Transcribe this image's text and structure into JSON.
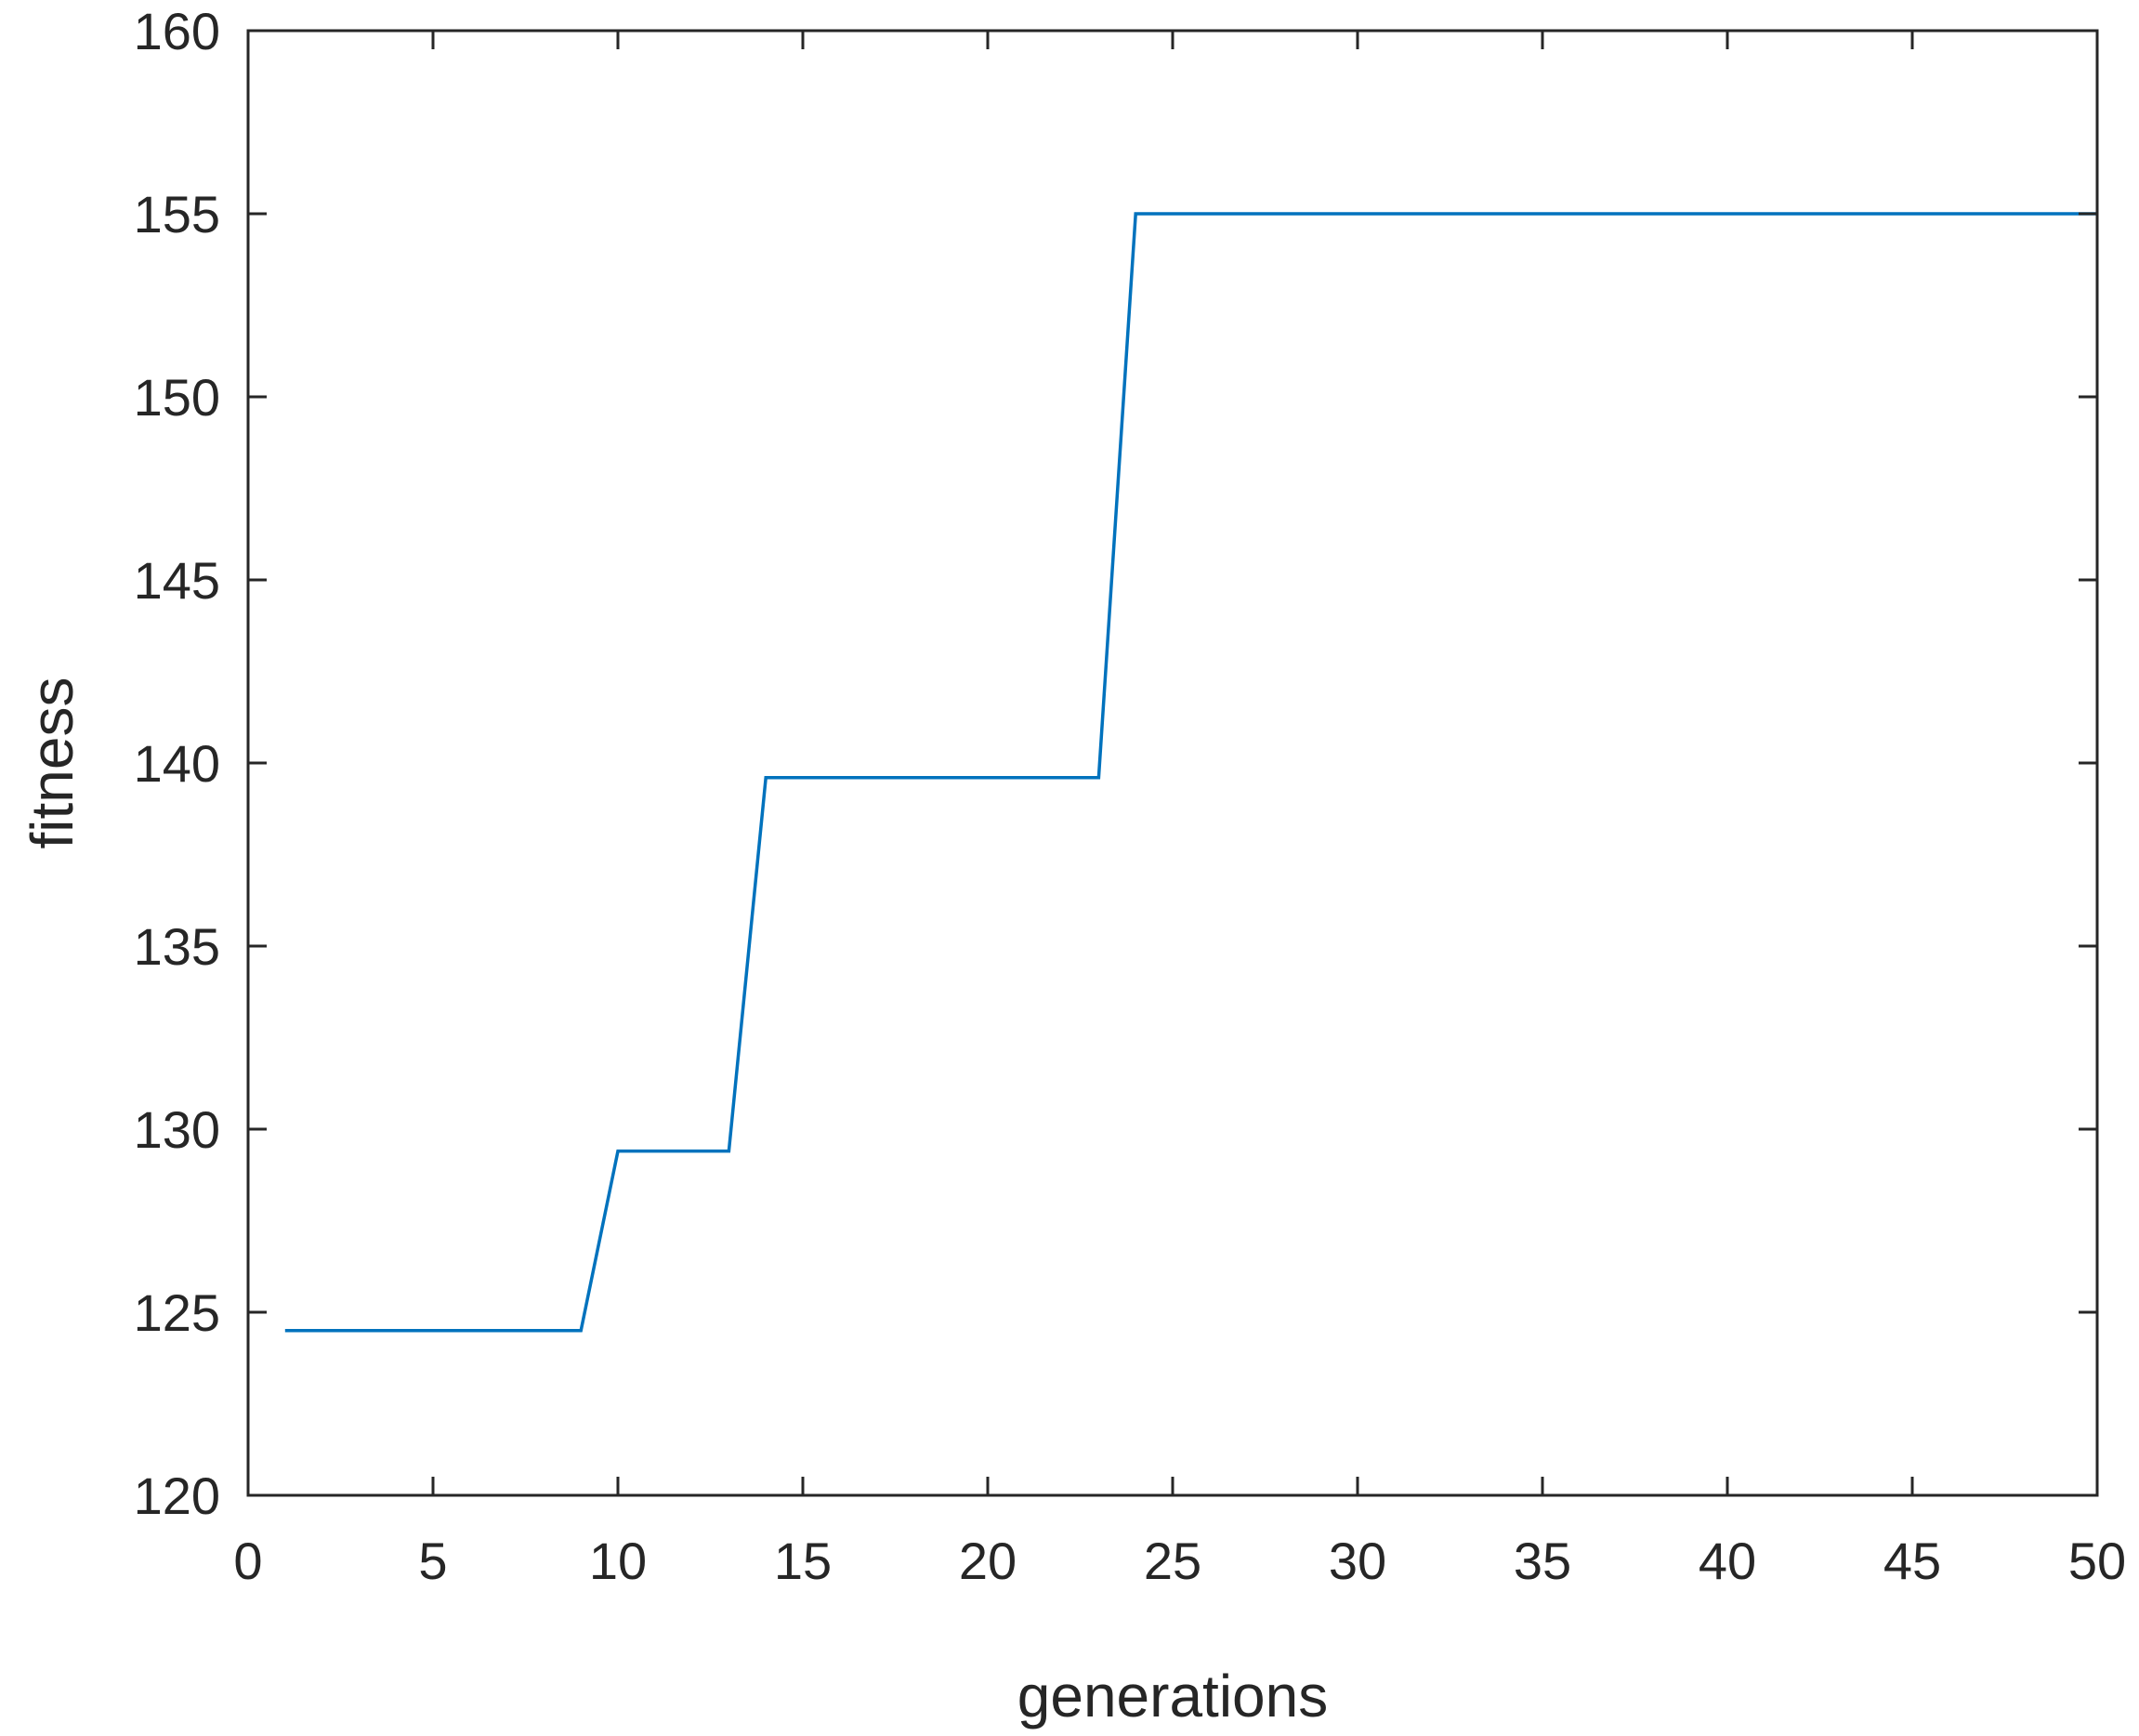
{
  "chart_data": {
    "type": "line",
    "title": "",
    "xlabel": "generations",
    "ylabel": "fitness",
    "xlim": [
      0,
      50
    ],
    "ylim": [
      120,
      160
    ],
    "xticks": [
      0,
      5,
      10,
      15,
      20,
      25,
      30,
      35,
      40,
      45,
      50
    ],
    "yticks": [
      120,
      125,
      130,
      135,
      140,
      145,
      150,
      155,
      160
    ],
    "grid": false,
    "series": [
      {
        "color": "#0072BD",
        "x": [
          1,
          2,
          3,
          4,
          5,
          6,
          7,
          8,
          9,
          10,
          11,
          12,
          13,
          14,
          15,
          16,
          17,
          18,
          19,
          20,
          21,
          22,
          23,
          24,
          25,
          26,
          27,
          28,
          29,
          30,
          31,
          32,
          33,
          34,
          35,
          36,
          37,
          38,
          39,
          40,
          41,
          42,
          43,
          44,
          45,
          46,
          47,
          48,
          49,
          50
        ],
        "y": [
          124.5,
          124.5,
          124.5,
          124.5,
          124.5,
          124.5,
          124.5,
          124.5,
          124.5,
          129.4,
          129.4,
          129.4,
          129.4,
          139.6,
          139.6,
          139.6,
          139.6,
          139.6,
          139.6,
          139.6,
          139.6,
          139.6,
          139.6,
          155.0,
          155.0,
          155.0,
          155.0,
          155.0,
          155.0,
          155.0,
          155.0,
          155.0,
          155.0,
          155.0,
          155.0,
          155.0,
          155.0,
          155.0,
          155.0,
          155.0,
          155.0,
          155.0,
          155.0,
          155.0,
          155.0,
          155.0,
          155.0,
          155.0,
          155.0,
          155.0
        ]
      }
    ]
  }
}
